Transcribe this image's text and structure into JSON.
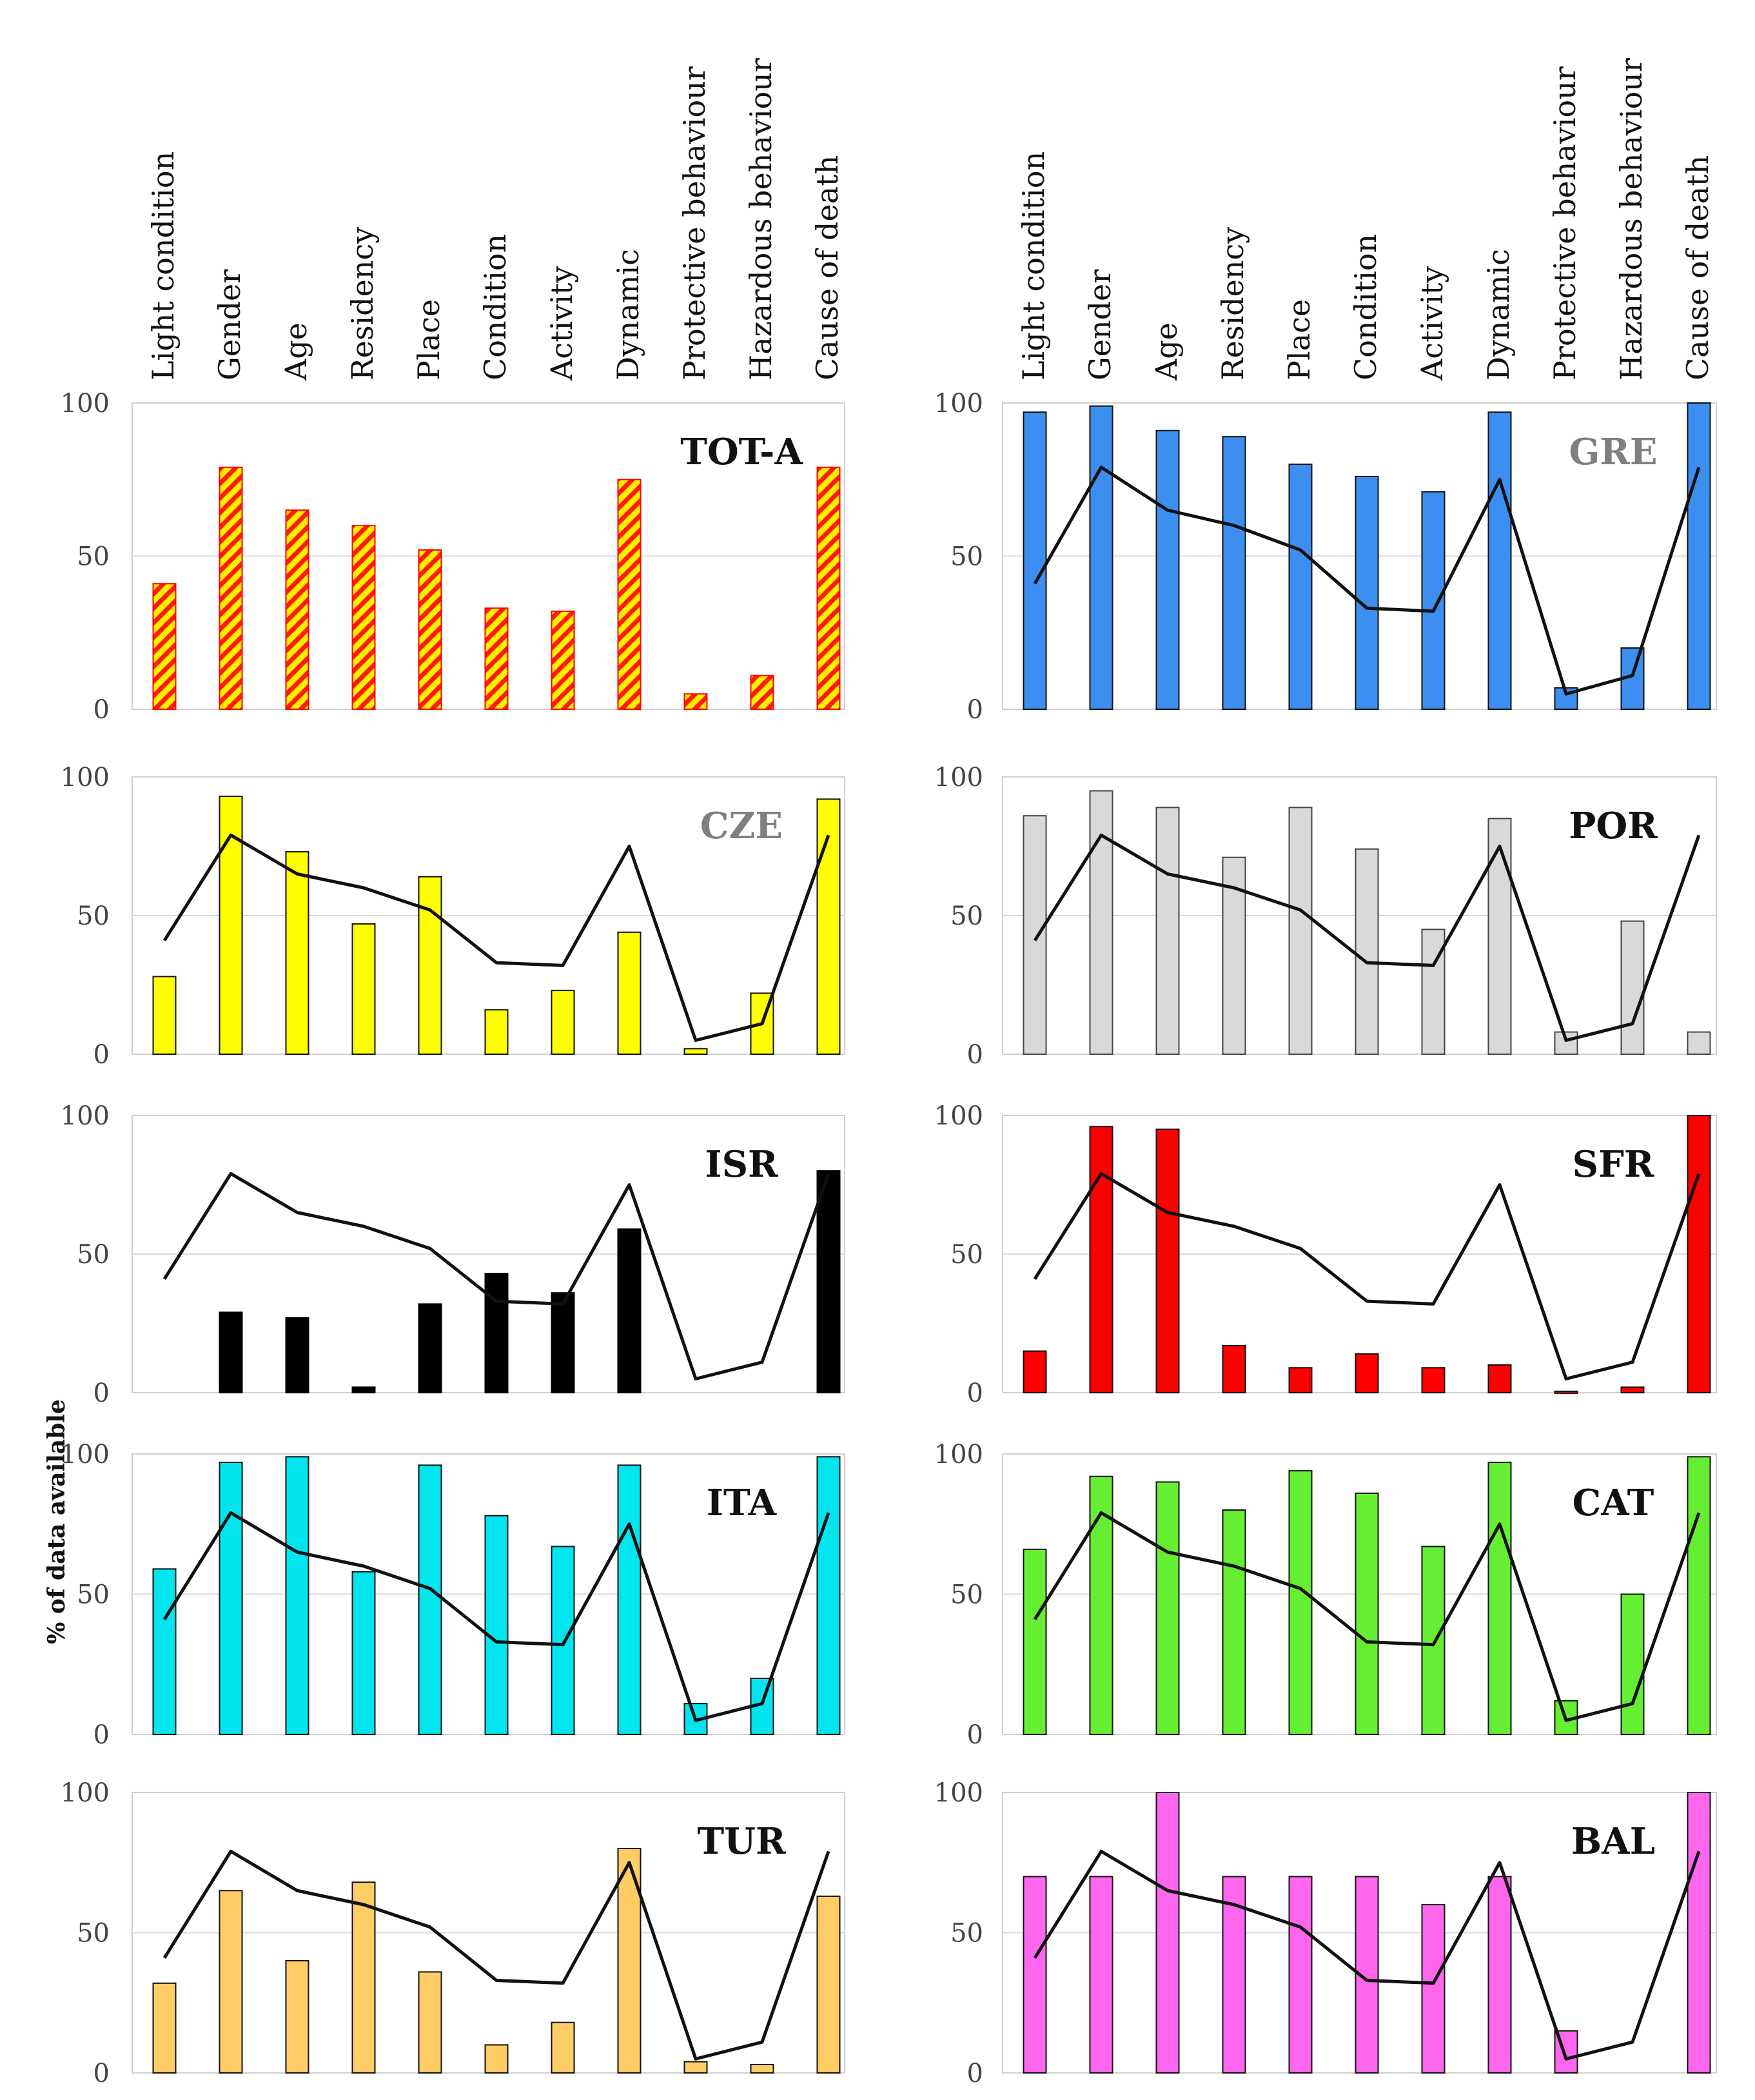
{
  "y_axis_label": "% of data available",
  "chart_data": [
    {
      "type": "bar",
      "title": "TOT-A",
      "title_color": "#111111",
      "fill": "hatch",
      "color": "#ffee00",
      "edge": "#ff0000",
      "show_line": false,
      "categories": [
        "Light condition",
        "Gender",
        "Age",
        "Residency",
        "Place",
        "Condition",
        "Activity",
        "Dynamic",
        "Protective behaviour",
        "Hazardous behaviour",
        "Cause of death"
      ],
      "values": [
        41,
        79,
        65,
        60,
        52,
        33,
        32,
        75,
        5,
        11,
        79
      ],
      "ylim": [
        0,
        100
      ],
      "yticks": [
        0,
        50,
        100
      ]
    },
    {
      "type": "bar",
      "title": "GRE",
      "title_color": "#7f7f7f",
      "fill": "solid",
      "color": "#3c8ff0",
      "edge": "#111111",
      "show_line": true,
      "categories": [
        "Light condition",
        "Gender",
        "Age",
        "Residency",
        "Place",
        "Condition",
        "Activity",
        "Dynamic",
        "Protective behaviour",
        "Hazardous behaviour",
        "Cause of death"
      ],
      "values": [
        97,
        99,
        91,
        89,
        80,
        76,
        71,
        97,
        7,
        20,
        100
      ],
      "ylim": [
        0,
        100
      ],
      "yticks": [
        0,
        50,
        100
      ]
    },
    {
      "type": "bar",
      "title": "CZE",
      "title_color": "#7f7f7f",
      "fill": "solid",
      "color": "#ffff00",
      "edge": "#111111",
      "show_line": true,
      "values": [
        28,
        93,
        73,
        47,
        64,
        16,
        23,
        44,
        2,
        22,
        92
      ],
      "ylim": [
        0,
        100
      ],
      "yticks": [
        0,
        50,
        100
      ]
    },
    {
      "type": "bar",
      "title": "POR",
      "title_color": "#111111",
      "fill": "solid",
      "color": "#d9d9d9",
      "edge": "#444444",
      "show_line": true,
      "values": [
        86,
        95,
        89,
        71,
        89,
        74,
        45,
        85,
        8,
        48,
        8
      ],
      "ylim": [
        0,
        100
      ],
      "yticks": [
        0,
        50,
        100
      ]
    },
    {
      "type": "bar",
      "title": "ISR",
      "title_color": "#111111",
      "fill": "solid",
      "color": "#000000",
      "edge": "#000000",
      "show_line": true,
      "values": [
        0,
        29,
        27,
        2,
        32,
        43,
        36,
        59,
        0,
        0,
        80
      ],
      "ylim": [
        0,
        100
      ],
      "yticks": [
        0,
        50,
        100
      ]
    },
    {
      "type": "bar",
      "title": "SFR",
      "title_color": "#111111",
      "fill": "solid",
      "color": "#ff0000",
      "edge": "#111111",
      "show_line": true,
      "values": [
        15,
        96,
        95,
        17,
        9,
        14,
        9,
        10,
        0.5,
        2,
        100
      ],
      "ylim": [
        0,
        100
      ],
      "yticks": [
        0,
        50,
        100
      ]
    },
    {
      "type": "bar",
      "title": "ITA",
      "title_color": "#111111",
      "fill": "solid",
      "color": "#00e5ee",
      "edge": "#111111",
      "show_line": true,
      "values": [
        59,
        97,
        99,
        58,
        96,
        78,
        67,
        96,
        11,
        20,
        99
      ],
      "ylim": [
        0,
        100
      ],
      "yticks": [
        0,
        50,
        100
      ]
    },
    {
      "type": "bar",
      "title": "CAT",
      "title_color": "#111111",
      "fill": "solid",
      "color": "#66ee33",
      "edge": "#111111",
      "show_line": true,
      "values": [
        66,
        92,
        90,
        80,
        94,
        86,
        67,
        97,
        12,
        50,
        99
      ],
      "ylim": [
        0,
        100
      ],
      "yticks": [
        0,
        50,
        100
      ]
    },
    {
      "type": "bar",
      "title": "TUR",
      "title_color": "#111111",
      "fill": "solid",
      "color": "#ffcc66",
      "edge": "#111111",
      "show_line": true,
      "values": [
        32,
        65,
        40,
        68,
        36,
        10,
        18,
        80,
        4,
        3,
        63
      ],
      "ylim": [
        0,
        100
      ],
      "yticks": [
        0,
        50,
        100
      ]
    },
    {
      "type": "bar",
      "title": "BAL",
      "title_color": "#111111",
      "fill": "solid",
      "color": "#ff66ee",
      "edge": "#111111",
      "show_line": true,
      "values": [
        70,
        70,
        100,
        70,
        70,
        70,
        60,
        70,
        15,
        0,
        100
      ],
      "ylim": [
        0,
        100
      ],
      "yticks": [
        0,
        50,
        100
      ]
    }
  ],
  "reference_line": {
    "name": "TOT-A",
    "color": "#111111",
    "values": [
      41,
      79,
      65,
      60,
      52,
      33,
      32,
      75,
      5,
      11,
      79
    ]
  }
}
